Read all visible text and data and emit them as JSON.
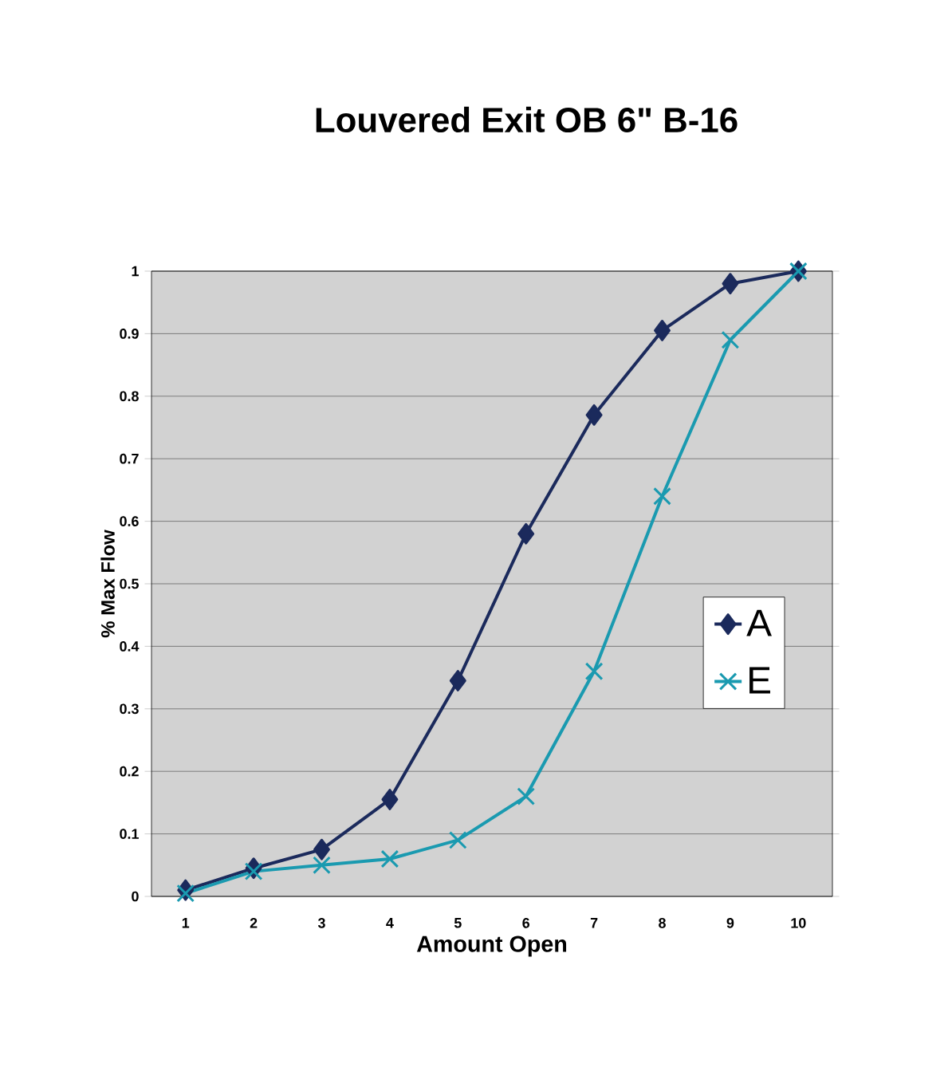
{
  "chart_data": {
    "type": "line",
    "title": "Louvered Exit OB 6\" B-16",
    "xlabel": "Amount Open",
    "ylabel": "% Max Flow",
    "categories": [
      "1",
      "2",
      "3",
      "4",
      "5",
      "6",
      "7",
      "8",
      "9",
      "10"
    ],
    "series": [
      {
        "name": "A",
        "color": "#1b2a5c",
        "marker": "diamond",
        "values": [
          0.01,
          0.045,
          0.075,
          0.155,
          0.345,
          0.58,
          0.77,
          0.905,
          0.98,
          1.0
        ]
      },
      {
        "name": "E",
        "color": "#1a9ab0",
        "marker": "cross",
        "values": [
          0.005,
          0.04,
          0.05,
          0.06,
          0.09,
          0.16,
          0.36,
          0.64,
          0.89,
          1.0
        ]
      }
    ],
    "ylim": [
      0,
      1
    ],
    "yticks": [
      0,
      0.1,
      0.2,
      0.3,
      0.4,
      0.5,
      0.6,
      0.7,
      0.8,
      0.9,
      1
    ],
    "grid": "y",
    "legend": "right",
    "line_style": "solid"
  }
}
